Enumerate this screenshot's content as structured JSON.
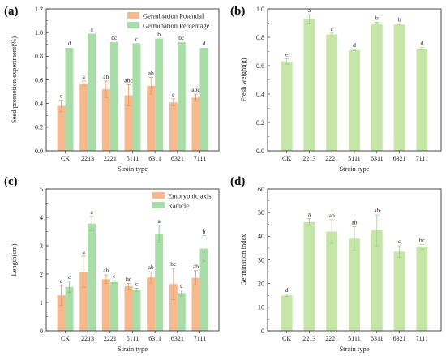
{
  "colors": {
    "orange": "#F7B98C",
    "green": "#A8DDA8",
    "light_green": "#C6E6A8",
    "err_orange": "#e39b68",
    "err_green": "#7fc07f",
    "err_light_green": "#9fcf8a"
  },
  "chart_data": [
    {
      "panel": "(a)",
      "type": "bar",
      "categories": [
        "CK",
        "2213",
        "2221",
        "5111",
        "6311",
        "6321",
        "7111"
      ],
      "series": [
        {
          "name": "Germination Potential",
          "values": [
            0.38,
            0.57,
            0.52,
            0.47,
            0.55,
            0.41,
            0.45
          ],
          "errors": [
            0.05,
            0.02,
            0.07,
            0.09,
            0.07,
            0.03,
            0.03
          ],
          "labels": [
            "c",
            "a",
            "ab",
            "abc",
            "ab",
            "c",
            "abc"
          ],
          "color": "orange"
        },
        {
          "name": "Germination Percentage",
          "values": [
            0.87,
            0.99,
            0.92,
            0.91,
            0.95,
            0.92,
            0.87
          ],
          "errors": [
            0,
            0,
            0,
            0,
            0,
            0,
            0
          ],
          "labels": [
            "d",
            "a",
            "bc",
            "c",
            "b",
            "bc",
            "d"
          ],
          "color": "green"
        }
      ],
      "xlabel": "Strain type",
      "ylabel": "Seed promotion experiment(%)",
      "ylim": [
        0,
        1.2
      ],
      "yticks": [
        "0.0",
        "0.2",
        "0.4",
        "0.6",
        "0.8",
        "1.0",
        "1.2"
      ],
      "legend": "top-right"
    },
    {
      "panel": "(b)",
      "type": "bar",
      "categories": [
        "CK",
        "2213",
        "2221",
        "5111",
        "6311",
        "6321",
        "7111"
      ],
      "series": [
        {
          "values": [
            0.63,
            0.93,
            0.82,
            0.71,
            0.9,
            0.89,
            0.72
          ],
          "errors": [
            0.02,
            0.03,
            0.01,
            0.005,
            0.005,
            0.005,
            0.01
          ],
          "labels": [
            "e",
            "a",
            "c",
            "d",
            "b",
            "b",
            "d"
          ],
          "color": "light_green"
        }
      ],
      "xlabel": "Strain type",
      "ylabel": "Fresh weight(g)",
      "ylim": [
        0,
        1.0
      ],
      "yticks": [
        "0.0",
        "0.2",
        "0.4",
        "0.6",
        "0.8",
        "1.0"
      ]
    },
    {
      "panel": "(c)",
      "type": "bar",
      "categories": [
        "CK",
        "2213",
        "2221",
        "5111",
        "6311",
        "6321",
        "7111"
      ],
      "series": [
        {
          "name": "Embryonic axis",
          "values": [
            1.25,
            2.08,
            1.82,
            1.57,
            1.88,
            1.65,
            1.87
          ],
          "errors": [
            0.35,
            0.55,
            0.15,
            0.1,
            0.2,
            0.55,
            0.25
          ],
          "labels": [
            "d",
            "a",
            "ab",
            "bc",
            "ab",
            "bc",
            "ab"
          ],
          "color": "orange"
        },
        {
          "name": "Radicle",
          "values": [
            1.55,
            3.78,
            1.72,
            1.45,
            3.42,
            1.33,
            2.9
          ],
          "errors": [
            0.2,
            0.25,
            0.05,
            0.05,
            0.3,
            0.1,
            0.45
          ],
          "labels": [
            "c",
            "a",
            "c",
            "c",
            "a",
            "c",
            "b"
          ],
          "color": "green"
        }
      ],
      "xlabel": "Strain type",
      "ylabel": "Length(cm)",
      "ylim": [
        0,
        5
      ],
      "yticks": [
        "0",
        "1",
        "2",
        "3",
        "4",
        "5"
      ],
      "legend": "top-right"
    },
    {
      "panel": "(d)",
      "type": "bar",
      "categories": [
        "CK",
        "2213",
        "2221",
        "5111",
        "6311",
        "6321",
        "7111"
      ],
      "series": [
        {
          "values": [
            15,
            46,
            42,
            39,
            42.5,
            33.5,
            35.5
          ],
          "errors": [
            0.5,
            1.5,
            5,
            5,
            6.5,
            2.5,
            1
          ],
          "labels": [
            "d",
            "a",
            "ab",
            "ab",
            "ab",
            "c",
            "bc"
          ],
          "color": "light_green"
        }
      ],
      "xlabel": "Strain type",
      "ylabel": "Germination index",
      "ylim": [
        0,
        60
      ],
      "yticks": [
        "0",
        "10",
        "20",
        "30",
        "40",
        "50",
        "60"
      ]
    }
  ]
}
